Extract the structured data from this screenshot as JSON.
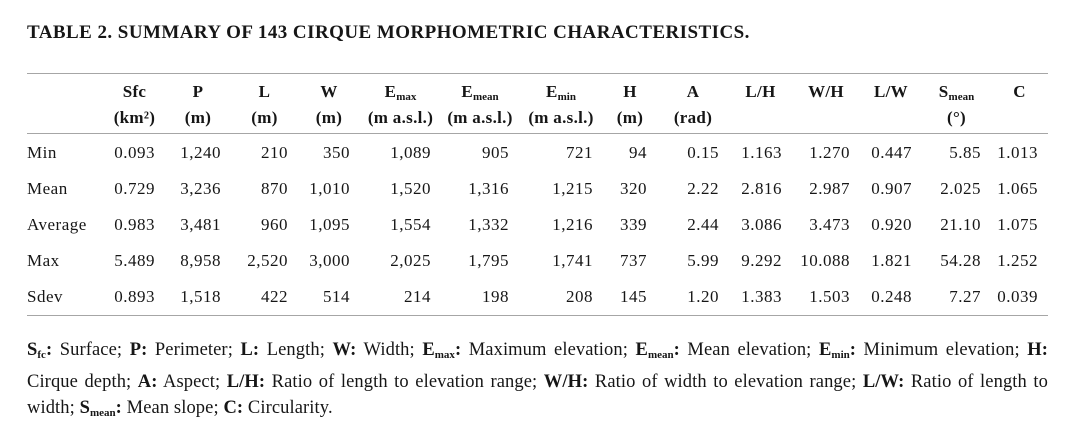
{
  "title": "TABLE 2. SUMMARY OF 143 CIRQUE MORPHOMETRIC CHARACTERISTICS.",
  "colors": {
    "background": "#ffffff",
    "text": "#161616",
    "rule": "#a6a6a6"
  },
  "table": {
    "columns": [
      {
        "sym": "",
        "sub": "",
        "unit": ""
      },
      {
        "sym": "Sfc",
        "sub": "",
        "unit": "(km²)"
      },
      {
        "sym": "P",
        "sub": "",
        "unit": "(m)"
      },
      {
        "sym": "L",
        "sub": "",
        "unit": "(m)"
      },
      {
        "sym": "W",
        "sub": "",
        "unit": "(m)"
      },
      {
        "sym": "E",
        "sub": "max",
        "unit": "(m a.s.l.)"
      },
      {
        "sym": "E",
        "sub": "mean",
        "unit": "(m a.s.l.)"
      },
      {
        "sym": "E",
        "sub": "min",
        "unit": "(m a.s.l.)"
      },
      {
        "sym": "H",
        "sub": "",
        "unit": "(m)"
      },
      {
        "sym": "A",
        "sub": "",
        "unit": "(rad)"
      },
      {
        "sym": "L/H",
        "sub": "",
        "unit": ""
      },
      {
        "sym": "W/H",
        "sub": "",
        "unit": ""
      },
      {
        "sym": "L/W",
        "sub": "",
        "unit": ""
      },
      {
        "sym": "S",
        "sub": "mean",
        "unit": "(°)"
      },
      {
        "sym": "C",
        "sub": "",
        "unit": ""
      }
    ],
    "rows": [
      [
        "Min",
        "0.093",
        "1,240",
        "210",
        "350",
        "1,089",
        "905",
        "721",
        "94",
        "0.15",
        "1.163",
        "1.270",
        "0.447",
        "5.85",
        "1.013"
      ],
      [
        "Mean",
        "0.729",
        "3,236",
        "870",
        "1,010",
        "1,520",
        "1,316",
        "1,215",
        "320",
        "2.22",
        "2.816",
        "2.987",
        "0.907",
        "2.025",
        "1.065"
      ],
      [
        "Average",
        "0.983",
        "3,481",
        "960",
        "1,095",
        "1,554",
        "1,332",
        "1,216",
        "339",
        "2.44",
        "3.086",
        "3.473",
        "0.920",
        "21.10",
        "1.075"
      ],
      [
        "Max",
        "5.489",
        "8,958",
        "2,520",
        "3,000",
        "2,025",
        "1,795",
        "1,741",
        "737",
        "5.99",
        "9.292",
        "10.088",
        "1.821",
        "54.28",
        "1.252"
      ],
      [
        "Sdev",
        "0.893",
        "1,518",
        "422",
        "514",
        "214",
        "198",
        "208",
        "145",
        "1.20",
        "1.383",
        "1.503",
        "0.248",
        "7.27",
        "0.039"
      ]
    ]
  },
  "footnote": {
    "items": [
      {
        "sym": "S",
        "sub": "fc",
        "desc": "Surface"
      },
      {
        "sym": "P",
        "sub": "",
        "desc": "Perimeter"
      },
      {
        "sym": "L",
        "sub": "",
        "desc": "Length"
      },
      {
        "sym": "W",
        "sub": "",
        "desc": "Width"
      },
      {
        "sym": "E",
        "sub": "max",
        "desc": "Maximum elevation"
      },
      {
        "sym": "E",
        "sub": "mean",
        "desc": "Mean elevation"
      },
      {
        "sym": "E",
        "sub": "min",
        "desc": "Minimum elevation"
      },
      {
        "sym": "H",
        "sub": "",
        "desc": "Cirque depth"
      },
      {
        "sym": "A",
        "sub": "",
        "desc": "Aspect"
      },
      {
        "sym": "L/H",
        "sub": "",
        "desc": "Ratio of length to elevation range"
      },
      {
        "sym": "W/H",
        "sub": "",
        "desc": "Ratio of width to elevation range"
      },
      {
        "sym": "L/W",
        "sub": "",
        "desc": "Ratio of length to width"
      },
      {
        "sym": "S",
        "sub": "mean",
        "desc": "Mean slope"
      },
      {
        "sym": "C",
        "sub": "",
        "desc": "Circularity"
      }
    ]
  }
}
